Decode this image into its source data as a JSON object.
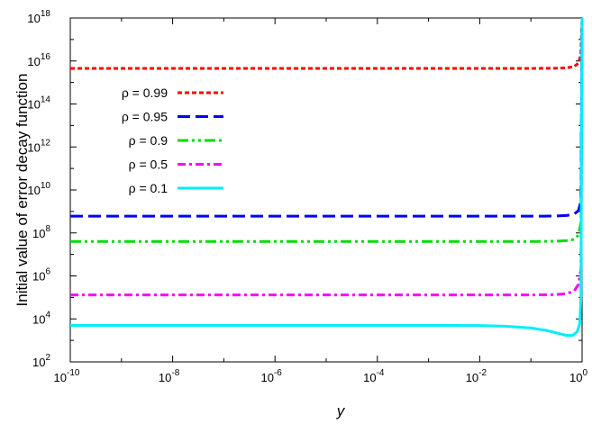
{
  "chart_data": {
    "type": "line",
    "xlabel": "y",
    "ylabel": "Initial value of error decay function",
    "xscale": "log",
    "yscale": "log",
    "xlim": [
      1e-10,
      1
    ],
    "ylim": [
      100,
      1e+18
    ],
    "x_ticks": [
      {
        "base": "10",
        "exp": "-10"
      },
      {
        "base": "10",
        "exp": "-8"
      },
      {
        "base": "10",
        "exp": "-6"
      },
      {
        "base": "10",
        "exp": "-4"
      },
      {
        "base": "10",
        "exp": "-2"
      },
      {
        "base": "10",
        "exp": "0"
      }
    ],
    "y_ticks": [
      {
        "base": "10",
        "exp": "2"
      },
      {
        "base": "10",
        "exp": "4"
      },
      {
        "base": "10",
        "exp": "6"
      },
      {
        "base": "10",
        "exp": "8"
      },
      {
        "base": "10",
        "exp": "10"
      },
      {
        "base": "10",
        "exp": "12"
      },
      {
        "base": "10",
        "exp": "14"
      },
      {
        "base": "10",
        "exp": "16"
      },
      {
        "base": "10",
        "exp": "18"
      }
    ],
    "grid": false,
    "legend_position": "left",
    "series": [
      {
        "name": "ρ = 0.99",
        "color": "#ff0000",
        "dash": "short-dash",
        "x": [
          1e-10,
          0.0001,
          0.01,
          0.1,
          0.3,
          0.5,
          0.7,
          0.85,
          0.95,
          1.0
        ],
        "y": [
          4500000000000000.0,
          4500000000000000.0,
          4500000000000000.0,
          4500000000000000.0,
          4600000000000000.0,
          4800000000000000.0,
          5500000000000000.0,
          8000000000000000.0,
          2e+16,
          1e+18
        ]
      },
      {
        "name": "ρ = 0.95",
        "color": "#0000ff",
        "dash": "long-dash",
        "x": [
          1e-10,
          0.0001,
          0.01,
          0.1,
          0.3,
          0.5,
          0.7,
          0.85,
          0.95,
          1.0
        ],
        "y": [
          600000000.0,
          600000000.0,
          600000000.0,
          600000000.0,
          610000000.0,
          650000000.0,
          750000000.0,
          1100000000.0,
          3000000000.0,
          1e+18
        ]
      },
      {
        "name": "ρ = 0.9",
        "color": "#00dd00",
        "dash": "dash-dot-dot",
        "x": [
          1e-10,
          0.0001,
          0.01,
          0.1,
          0.3,
          0.5,
          0.7,
          0.85,
          0.95,
          1.0
        ],
        "y": [
          40000000.0,
          40000000.0,
          40000000.0,
          40000000.0,
          41000000.0,
          44000000.0,
          50000000.0,
          80000000.0,
          300000000.0,
          1e+18
        ]
      },
      {
        "name": "ρ = 0.5",
        "color": "#ff00ff",
        "dash": "dash-dot",
        "x": [
          1e-10,
          0.0001,
          0.01,
          0.1,
          0.3,
          0.5,
          0.7,
          0.85,
          0.95,
          1.0
        ],
        "y": [
          130000.0,
          130000.0,
          130000.0,
          130000.0,
          135000.0,
          150000.0,
          200000.0,
          400000.0,
          2000000.0,
          1e+18
        ]
      },
      {
        "name": "ρ = 0.1",
        "color": "#00eeff",
        "dash": "solid",
        "x": [
          1e-10,
          1e-06,
          0.0001,
          0.001,
          0.01,
          0.03,
          0.1,
          0.2,
          0.35,
          0.5,
          0.65,
          0.8,
          0.9,
          0.95,
          1.0
        ],
        "y": [
          5000,
          5000,
          5000,
          5000,
          4900,
          4600,
          3800,
          2900,
          2100,
          1700,
          1700,
          2500,
          6000,
          100000.0,
          1e+18
        ]
      }
    ]
  }
}
